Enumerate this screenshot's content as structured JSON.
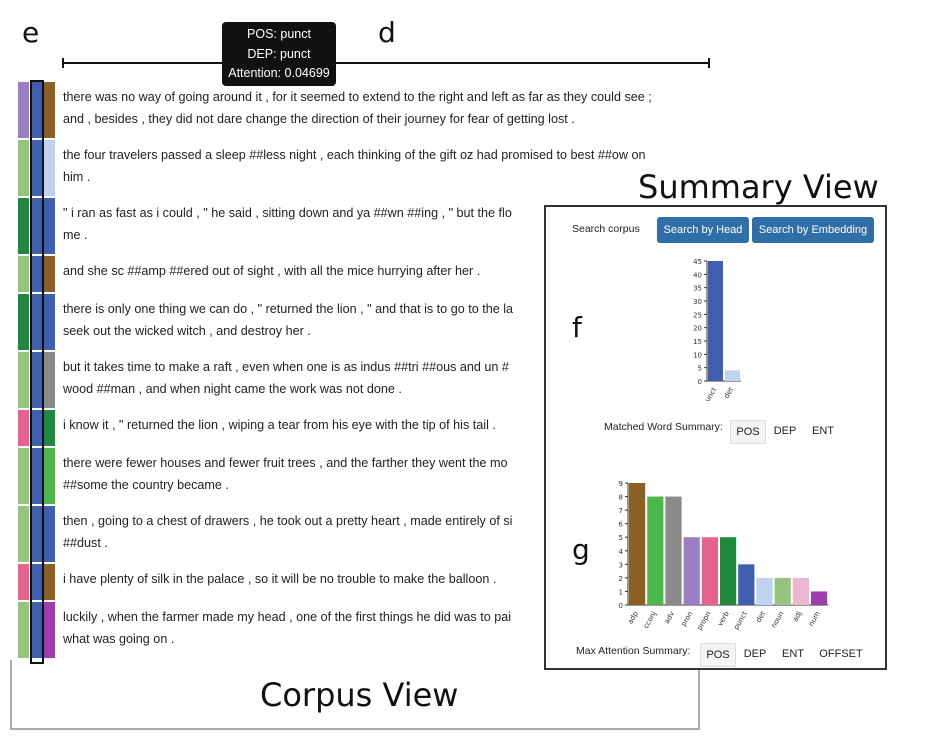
{
  "labels": {
    "e": "e",
    "d": "d",
    "f": "f",
    "g": "g",
    "summary_view": "Summary View",
    "corpus_view": "Corpus View"
  },
  "tooltip": {
    "pos": "POS: punct",
    "dep": "DEP: punct",
    "attention": "Attention: 0.04699"
  },
  "sentences": [
    {
      "line1": "there was no way of going around it , for it seemed to extend to the right and left as far as they could see ;",
      "line2": "and , besides , they did not dare change the direction of their journey for fear of getting lost ."
    },
    {
      "line1": "the four travelers passed a sleep ##less night , each thinking of the gift oz had promised to best ##ow on",
      "line2": "him ."
    },
    {
      "line1": "\" i ran as fast as i could , \" he said , sitting down and ya ##wn ##ing , \" but the flo",
      "line2": "me ."
    },
    {
      "line1": "and she sc ##amp ##ered out of sight , with all the mice hurrying after her .",
      "line2": ""
    },
    {
      "line1": "there is only one thing we can do , \" returned the lion , \" and that is to go to the la",
      "line2": "seek out the wicked witch , and destroy her ."
    },
    {
      "line1": "but it takes time to make a raft , even when one is as indus ##tri ##ous and un #",
      "line2": "wood ##man , and when night came the work was not done ."
    },
    {
      "line1": "i know it , \" returned the lion , wiping a tear from his eye with the tip of his tail .",
      "line2": ""
    },
    {
      "line1": "there were fewer houses and fewer fruit trees , and the farther they went the mo",
      "line2": "##some the country became ."
    },
    {
      "line1": "then , going to a chest of drawers , he took out a pretty heart , made entirely of si",
      "line2": "##dust ."
    },
    {
      "line1": "i have plenty of silk in the palace , so it will be no trouble to make the balloon .",
      "line2": ""
    },
    {
      "line1": "luckily , when the farmer made my head , one of the first things he did was to pai",
      "line2": "what was going on ."
    }
  ],
  "summary": {
    "search_label": "Search corpus",
    "btn_head": "Search by Head",
    "btn_embed": "Search by Embedding",
    "matched_label": "Matched Word Summary:",
    "matched_tabs": [
      "POS",
      "DEP",
      "ENT"
    ],
    "max_label": "Max Attention Summary:",
    "max_tabs": [
      "POS",
      "DEP",
      "ENT",
      "OFFSET"
    ]
  },
  "chart_data": [
    {
      "type": "bar",
      "categories": [
        "punct",
        "det"
      ],
      "values": [
        45,
        4
      ],
      "ylim": [
        0,
        45
      ],
      "yticks": [
        0,
        5,
        10,
        15,
        20,
        25,
        30,
        35,
        40,
        45
      ],
      "colors": [
        "#3f5fae",
        "#bdd3ef"
      ]
    },
    {
      "type": "bar",
      "categories": [
        "adp",
        "cconj",
        "adv",
        "pron",
        "propn",
        "verb",
        "punct",
        "det",
        "noun",
        "adj",
        "num"
      ],
      "values": [
        9,
        8,
        8,
        5,
        5,
        5,
        3,
        2,
        2,
        2,
        1
      ],
      "ylim": [
        0,
        9
      ],
      "yticks": [
        0,
        1,
        2,
        3,
        4,
        5,
        6,
        7,
        8,
        9
      ],
      "colors": [
        "#8c5f22",
        "#4cb84c",
        "#8a8a8a",
        "#9b7fc2",
        "#e8628e",
        "#1f8a3e",
        "#3f5fae",
        "#bdd3ef",
        "#97c47c",
        "#ecb6d3",
        "#a03cae"
      ]
    }
  ]
}
